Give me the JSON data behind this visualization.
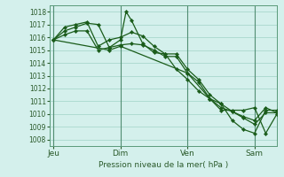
{
  "xlabel": "Pression niveau de la mer( hPa )",
  "ylim": [
    1007.5,
    1018.5
  ],
  "yticks": [
    1008,
    1009,
    1010,
    1011,
    1012,
    1013,
    1014,
    1015,
    1016,
    1017,
    1018
  ],
  "bg_color": "#d4f0ec",
  "grid_color": "#a8d8cc",
  "line_color": "#1a5c1a",
  "marker_color": "#1a5c1a",
  "vline_color": "#3a7a5a",
  "x_tick_labels": [
    "Jeu",
    "Dim",
    "Ven",
    "Sam"
  ],
  "x_tick_positions": [
    0,
    36,
    72,
    108
  ],
  "xlim": [
    -2,
    120
  ],
  "series": [
    {
      "x": [
        0,
        6,
        12,
        18,
        24,
        30,
        36,
        39,
        42,
        48,
        54,
        60,
        66,
        72,
        78,
        84,
        90,
        96,
        102,
        108,
        114,
        120
      ],
      "y": [
        1015.8,
        1016.5,
        1016.8,
        1017.1,
        1017.0,
        1015.2,
        1015.8,
        1018.0,
        1017.3,
        1015.5,
        1014.8,
        1014.7,
        1013.5,
        1012.7,
        1011.8,
        1011.2,
        1010.8,
        1009.5,
        1008.8,
        1008.5,
        1010.3,
        1010.3
      ]
    },
    {
      "x": [
        0,
        6,
        12,
        18,
        24,
        30,
        36,
        42,
        48,
        54,
        60,
        66,
        72,
        78,
        84,
        90,
        96,
        102,
        108,
        114,
        120
      ],
      "y": [
        1015.8,
        1016.8,
        1017.0,
        1017.2,
        1015.3,
        1015.8,
        1016.0,
        1016.4,
        1016.1,
        1015.3,
        1014.7,
        1014.7,
        1013.5,
        1012.7,
        1011.5,
        1010.8,
        1010.2,
        1009.7,
        1009.2,
        1010.1,
        1010.1
      ]
    },
    {
      "x": [
        0,
        6,
        12,
        18,
        24,
        30,
        36,
        42,
        48,
        54,
        60,
        66,
        72,
        78,
        84,
        90,
        96,
        102,
        108,
        114,
        120
      ],
      "y": [
        1015.8,
        1016.2,
        1016.5,
        1016.5,
        1015.0,
        1015.2,
        1015.4,
        1015.5,
        1015.4,
        1015.0,
        1014.5,
        1014.5,
        1013.2,
        1012.5,
        1011.2,
        1010.5,
        1010.2,
        1009.8,
        1009.5,
        1010.5,
        1010.1
      ]
    },
    {
      "x": [
        0,
        30,
        36,
        72,
        84,
        90,
        96,
        102,
        108,
        114,
        120
      ],
      "y": [
        1015.8,
        1015.0,
        1015.3,
        1013.2,
        1011.2,
        1010.3,
        1010.3,
        1010.3,
        1010.5,
        1008.5,
        1010.0
      ]
    }
  ],
  "vlines": [
    0,
    36,
    72,
    108
  ]
}
